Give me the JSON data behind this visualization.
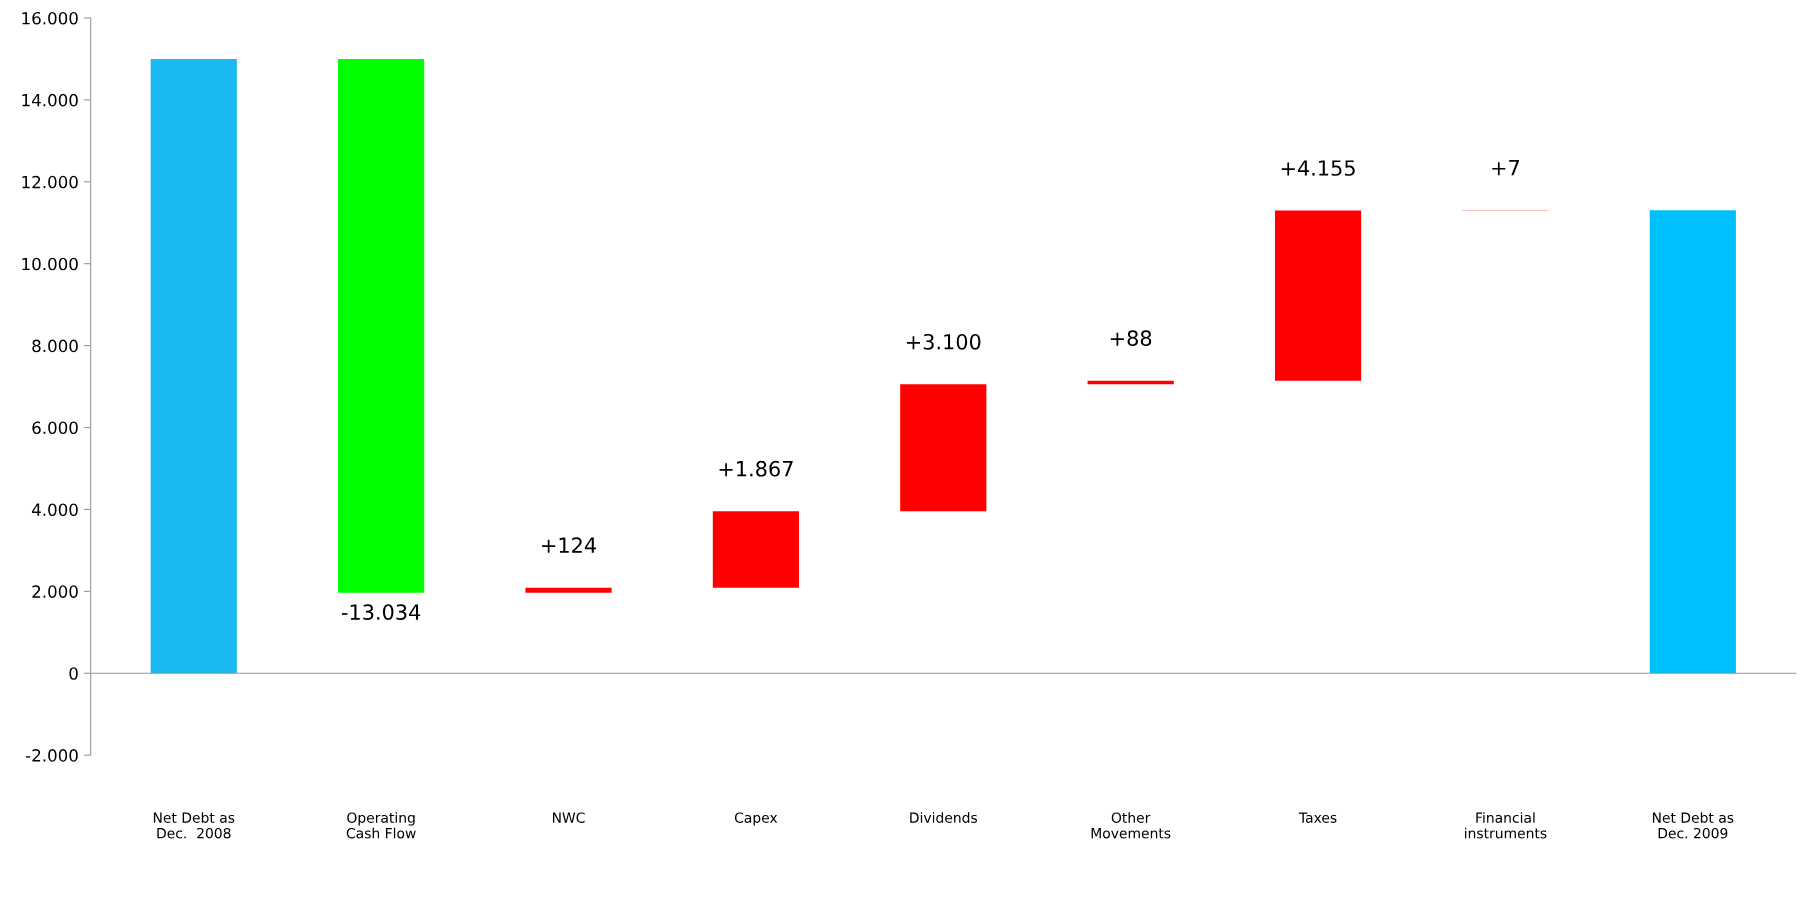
{
  "chart_data": {
    "type": "bar",
    "categories": [
      "Net Debt as\nDec.  2008",
      "Operating\nCash Flow",
      "NWC",
      "Capex",
      "Dividends",
      "Other\nMovements",
      "Taxes",
      "Financial\ninstruments",
      "Net Debt as\nDec. 2009"
    ],
    "values": [
      15000,
      -13034,
      124,
      1867,
      3100,
      88,
      4155,
      7,
      11307
    ],
    "base": [
      0,
      15000,
      1966,
      2090,
      3957,
      7057,
      7145,
      11300,
      0
    ],
    "colors": [
      "#1ab8f0",
      "#00ff00",
      "#ff0000",
      "#ff0000",
      "#ff0000",
      "#ff0000",
      "#ff0000",
      "#ff0000",
      "#00bfff"
    ],
    "value_labels": [
      null,
      "-13.034",
      "+124",
      "+1.867",
      "+3.100",
      "+88",
      "+4.155",
      "+7",
      null
    ],
    "ylim": [
      -2000,
      16000
    ],
    "yticks": [
      {
        "value": -2000,
        "label": "-2.000"
      },
      0,
      {
        "value": 2000,
        "label": "2.000"
      },
      {
        "value": 4000,
        "label": "4.000"
      },
      {
        "value": 6000,
        "label": "6.000"
      },
      {
        "value": 8000,
        "label": "8.000"
      },
      {
        "value": 10000,
        "label": "10.000"
      },
      {
        "value": 12000,
        "label": "12.000"
      },
      {
        "value": 14000,
        "label": "14.000"
      },
      {
        "value": 16000,
        "label": "16.000"
      }
    ]
  }
}
